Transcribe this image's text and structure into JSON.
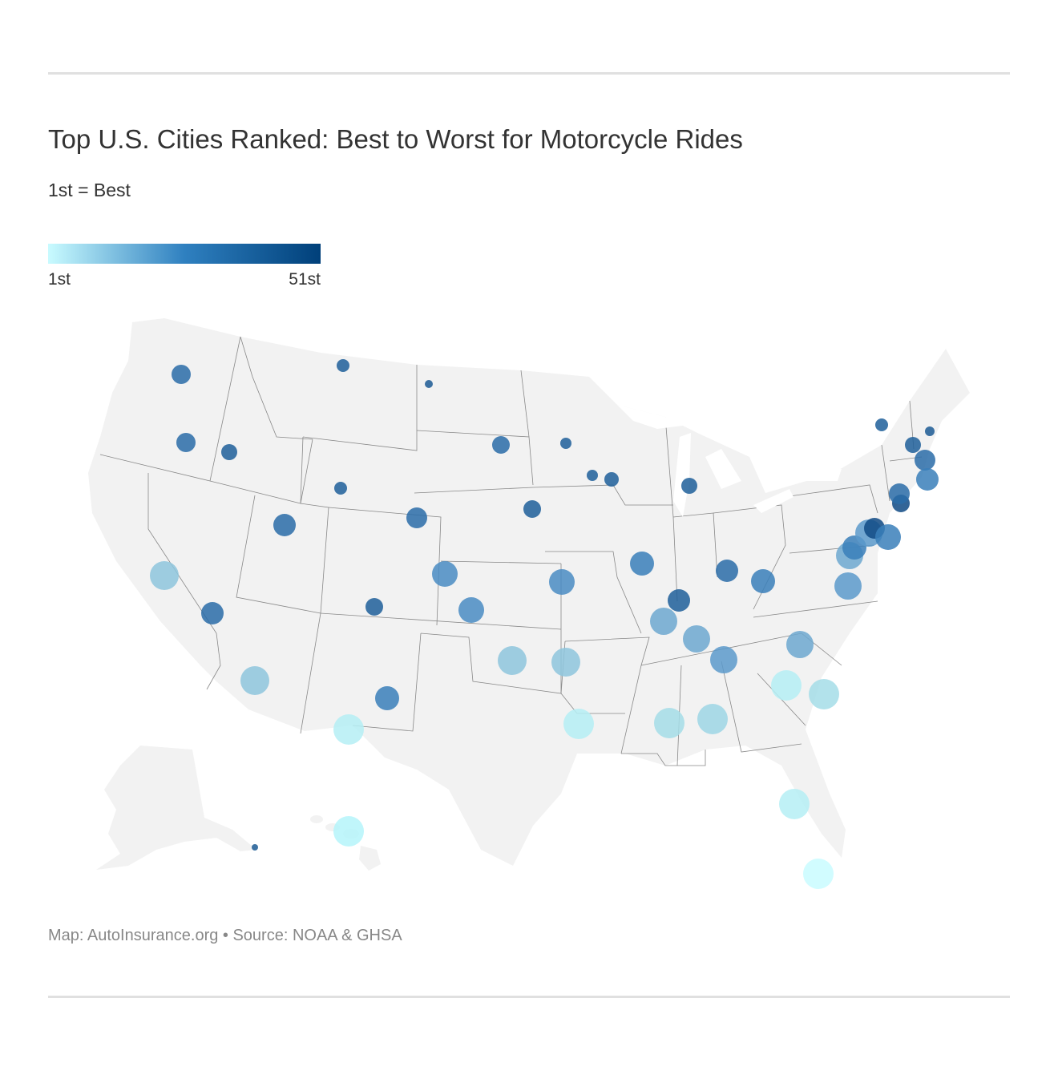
{
  "header": {
    "title": "Top U.S. Cities Ranked: Best to Worst for Motorcycle Rides",
    "subtitle": "1st = Best"
  },
  "legend": {
    "min_label": "1st",
    "max_label": "51st",
    "color_low": "#c9fbff",
    "color_mid": "#2f80c0",
    "color_high": "#00407a"
  },
  "map": {
    "land_color": "#f2f2f2",
    "border_color": "#888888",
    "regions": [
      "contiguous-us",
      "alaska",
      "hawaii"
    ]
  },
  "footer": {
    "source": "Map: AutoInsurance.org • Source: NOAA & GHSA"
  }
}
